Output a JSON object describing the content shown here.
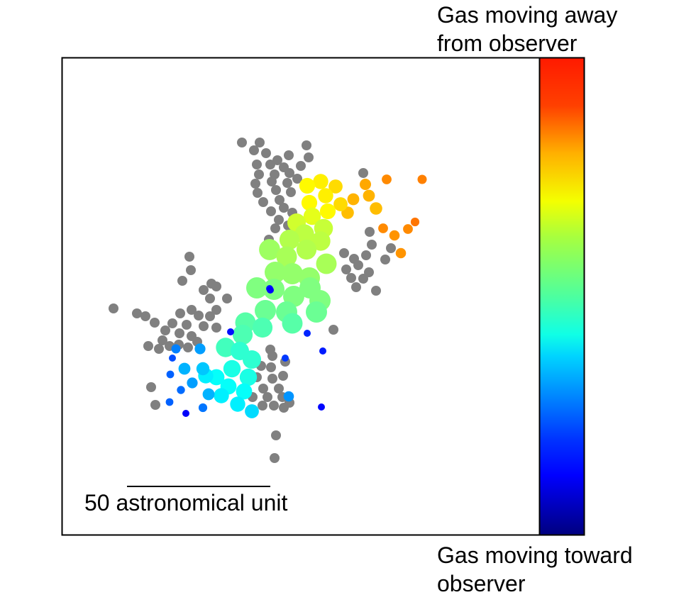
{
  "colorbar": {
    "top_label": "Gas moving away\nfrom observer",
    "bottom_label": "Gas moving toward\nobserver",
    "colormap": "jet"
  },
  "scale_bar": {
    "label": "50 astronomical unit",
    "length_au": 50
  },
  "chart_data": {
    "type": "scatter",
    "title": "",
    "xlabel": "",
    "ylabel": "",
    "ticks": "none",
    "colors": {
      "no_velocity": "#808080"
    },
    "series": [
      {
        "name": "",
        "color_meaning": "no velocity (gray)",
        "points": [
          [
            341,
            201
          ],
          [
            366,
            201
          ],
          [
            432,
            205
          ],
          [
            358,
            212
          ],
          [
            375,
            216
          ],
          [
            407,
            219
          ],
          [
            391,
            226
          ],
          [
            435,
            222
          ],
          [
            362,
            232
          ],
          [
            381,
            232
          ],
          [
            400,
            236
          ],
          [
            424,
            234
          ],
          [
            365,
            246
          ],
          [
            387,
            246
          ],
          [
            408,
            244
          ],
          [
            360,
            259
          ],
          [
            383,
            256
          ],
          [
            405,
            258
          ],
          [
            419,
            252
          ],
          [
            363,
            272
          ],
          [
            389,
            268
          ],
          [
            410,
            271
          ],
          [
            371,
            285
          ],
          [
            394,
            282
          ],
          [
            382,
            298
          ],
          [
            400,
            293
          ],
          [
            412,
            300
          ],
          [
            393,
            310
          ],
          [
            406,
            318
          ],
          [
            388,
            322
          ],
          [
            414,
            324
          ],
          [
            379,
            338
          ],
          [
            512,
            244
          ],
          [
            521,
            327
          ],
          [
            524,
            345
          ],
          [
            551,
            350
          ],
          [
            543,
            366
          ],
          [
            485,
            357
          ],
          [
            499,
            365
          ],
          [
            516,
            360
          ],
          [
            505,
            374
          ],
          [
            488,
            380
          ],
          [
            520,
            384
          ],
          [
            495,
            392
          ],
          [
            512,
            393
          ],
          [
            530,
            410
          ],
          [
            502,
            405
          ],
          [
            267,
            362
          ],
          [
            269,
            381
          ],
          [
            257,
            396
          ],
          [
            298,
            400
          ],
          [
            287,
            409
          ],
          [
            305,
            404
          ],
          [
            320,
            421
          ],
          [
            296,
            421
          ],
          [
            305,
            437
          ],
          [
            160,
            435
          ],
          [
            193,
            442
          ],
          [
            205,
            446
          ],
          [
            270,
            437
          ],
          [
            254,
            442
          ],
          [
            280,
            445
          ],
          [
            296,
            446
          ],
          [
            218,
            455
          ],
          [
            243,
            456
          ],
          [
            263,
            458
          ],
          [
            287,
            460
          ],
          [
            305,
            462
          ],
          [
            233,
            466
          ],
          [
            253,
            470
          ],
          [
            270,
            474
          ],
          [
            229,
            480
          ],
          [
            252,
            486
          ],
          [
            278,
            482
          ],
          [
            209,
            488
          ],
          [
            224,
            492
          ],
          [
            239,
            488
          ],
          [
            265,
            490
          ],
          [
            470,
            465
          ],
          [
            381,
            493
          ],
          [
            384,
            502
          ],
          [
            402,
            510
          ],
          [
            368,
            516
          ],
          [
            382,
            518
          ],
          [
            362,
            532
          ],
          [
            384,
            534
          ],
          [
            399,
            530
          ],
          [
            371,
            548
          ],
          [
            393,
            548
          ],
          [
            356,
            560
          ],
          [
            377,
            560
          ],
          [
            398,
            560
          ],
          [
            370,
            572
          ],
          [
            386,
            572
          ],
          [
            408,
            568
          ],
          [
            400,
            575
          ],
          [
            213,
            546
          ],
          [
            219,
            571
          ],
          [
            389,
            614
          ],
          [
            387,
            646
          ]
        ]
      },
      {
        "name": "",
        "color_meaning": "line-of-sight velocity (jet colormap, 0 = toward, 1 = away)",
        "points": [
          [
            595,
            253,
            0.75
          ],
          [
            545,
            253,
            0.74
          ],
          [
            585,
            313,
            0.76
          ],
          [
            575,
            323,
            0.74
          ],
          [
            540,
            322,
            0.74
          ],
          [
            556,
            332,
            0.73
          ],
          [
            565,
            357,
            0.73
          ],
          [
            515,
            260,
            0.71
          ],
          [
            520,
            276,
            0.7
          ],
          [
            498,
            281,
            0.7
          ],
          [
            490,
            300,
            0.69
          ],
          [
            530,
            294,
            0.69
          ],
          [
            473,
            263,
            0.66
          ],
          [
            452,
            256,
            0.64
          ],
          [
            433,
            262,
            0.63
          ],
          [
            459,
            276,
            0.64
          ],
          [
            480,
            288,
            0.66
          ],
          [
            436,
            286,
            0.63
          ],
          [
            462,
            298,
            0.63
          ],
          [
            440,
            305,
            0.6
          ],
          [
            418,
            314,
            0.58
          ],
          [
            456,
            322,
            0.57
          ],
          [
            429,
            330,
            0.56
          ],
          [
            452,
            340,
            0.56
          ],
          [
            408,
            338,
            0.55
          ],
          [
            432,
            352,
            0.55
          ],
          [
            380,
            352,
            0.53
          ],
          [
            460,
            372,
            0.54
          ],
          [
            404,
            362,
            0.54
          ],
          [
            388,
            384,
            0.52
          ],
          [
            412,
            386,
            0.52
          ],
          [
            436,
            392,
            0.52
          ],
          [
            362,
            406,
            0.5
          ],
          [
            386,
            408,
            0.5
          ],
          [
            437,
            406,
            0.5
          ],
          [
            414,
            418,
            0.5
          ],
          [
            451,
            424,
            0.5
          ],
          [
            374,
            438,
            0.48
          ],
          [
            404,
            440,
            0.48
          ],
          [
            446,
            440,
            0.48
          ],
          [
            412,
            456,
            0.46
          ],
          [
            346,
            455,
            0.46
          ],
          [
            370,
            462,
            0.45
          ],
          [
            342,
            472,
            0.45
          ],
          [
            318,
            490,
            0.44
          ],
          [
            338,
            495,
            0.42
          ],
          [
            355,
            507,
            0.42
          ],
          [
            327,
            520,
            0.4
          ],
          [
            350,
            532,
            0.4
          ],
          [
            305,
            532,
            0.38
          ],
          [
            322,
            545,
            0.38
          ],
          [
            344,
            552,
            0.38
          ],
          [
            290,
            530,
            0.36
          ],
          [
            312,
            558,
            0.36
          ],
          [
            335,
            570,
            0.36
          ],
          [
            355,
            580,
            0.34
          ],
          [
            286,
            520,
            0.32
          ],
          [
            260,
            520,
            0.3
          ],
          [
            271,
            540,
            0.28
          ],
          [
            282,
            492,
            0.28
          ],
          [
            294,
            556,
            0.3
          ],
          [
            407,
            559,
            0.27
          ],
          [
            248,
            492,
            0.25
          ],
          [
            240,
            528,
            0.22
          ],
          [
            239,
            567,
            0.22
          ],
          [
            286,
            575,
            0.24
          ],
          [
            255,
            550,
            0.23
          ],
          [
            243,
            505,
            0.2
          ],
          [
            380,
            407,
            0.15
          ],
          [
            402,
            505,
            0.18
          ],
          [
            433,
            470,
            0.16
          ],
          [
            455,
            495,
            0.15
          ],
          [
            325,
            468,
            0.14
          ],
          [
            453,
            574,
            0.13
          ],
          [
            262,
            583,
            0.12
          ],
          [
            381,
            409,
            0.12
          ]
        ]
      }
    ]
  }
}
